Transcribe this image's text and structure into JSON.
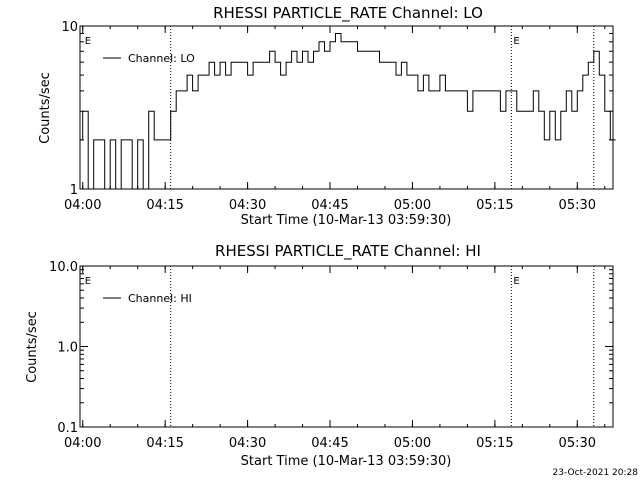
{
  "chart_data": [
    {
      "type": "line",
      "title": "RHESSI PARTICLE_RATE Channel: LO",
      "xlabel": "Start Time (10-Mar-13 03:59:30)",
      "ylabel": "Counts/sec",
      "y_scale": "log",
      "ylim": [
        1,
        10
      ],
      "xlim": [
        "03:59:30",
        "05:36:30"
      ],
      "x_ticks": [
        "04:00",
        "04:15",
        "04:30",
        "04:45",
        "05:00",
        "05:15",
        "05:30"
      ],
      "y_ticks": [
        "1",
        "10"
      ],
      "legend": "top-left",
      "series": [
        {
          "name": "Channel: LO",
          "x": [
            "03:59:30",
            "04:00",
            "04:01",
            "04:02",
            "04:03",
            "04:04",
            "04:05",
            "04:06",
            "04:07",
            "04:08",
            "04:09",
            "04:10",
            "04:11",
            "04:12",
            "04:13",
            "04:14",
            "04:15",
            "04:16",
            "04:17",
            "04:18",
            "04:19",
            "04:20",
            "04:21",
            "04:22",
            "04:23",
            "04:24",
            "04:25",
            "04:26",
            "04:27",
            "04:28",
            "04:29",
            "04:30",
            "04:31",
            "04:32",
            "04:33",
            "04:34",
            "04:35",
            "04:36",
            "04:37",
            "04:38",
            "04:39",
            "04:40",
            "04:41",
            "04:42",
            "04:43",
            "04:44",
            "04:45",
            "04:46",
            "04:47",
            "04:48",
            "04:49",
            "04:50",
            "04:51",
            "04:52",
            "04:53",
            "04:54",
            "04:55",
            "04:56",
            "04:57",
            "04:58",
            "04:59",
            "05:00",
            "05:01",
            "05:02",
            "05:03",
            "05:04",
            "05:05",
            "05:06",
            "05:07",
            "05:08",
            "05:09",
            "05:10",
            "05:11",
            "05:12",
            "05:13",
            "05:14",
            "05:15",
            "05:16",
            "05:17",
            "05:18",
            "05:19",
            "05:20",
            "05:21",
            "05:22",
            "05:23",
            "05:24",
            "05:25",
            "05:26",
            "05:27",
            "05:28",
            "05:29",
            "05:30",
            "05:31",
            "05:32",
            "05:33",
            "05:34",
            "05:35",
            "05:36"
          ],
          "y": [
            2,
            3,
            1,
            2,
            2,
            1,
            2,
            1,
            2,
            2,
            1,
            2,
            1,
            3,
            2,
            2,
            2,
            3,
            4,
            4,
            5,
            4,
            5,
            5,
            6,
            5,
            6,
            5,
            6,
            6,
            6,
            5,
            6,
            6,
            6,
            7,
            6,
            5,
            6,
            7,
            6,
            7,
            6,
            7,
            8,
            7,
            8,
            9,
            8,
            8,
            8,
            7,
            7,
            7,
            7,
            6,
            6,
            6,
            5,
            6,
            5,
            5,
            4,
            5,
            4,
            4,
            5,
            4,
            4,
            4,
            4,
            3,
            4,
            4,
            4,
            4,
            4,
            3,
            4,
            4,
            3,
            3,
            3,
            4,
            3,
            2,
            3,
            2,
            3,
            4,
            3,
            4,
            5,
            6,
            7,
            5,
            3,
            2
          ]
        }
      ],
      "annotations": [
        {
          "text": "E",
          "x": "04:00"
        },
        {
          "text": "E",
          "x": "05:18"
        }
      ],
      "vlines": [
        "04:16",
        "05:18",
        "05:33"
      ]
    },
    {
      "type": "line",
      "title": "RHESSI PARTICLE_RATE Channel: HI",
      "xlabel": "Start Time (10-Mar-13 03:59:30)",
      "ylabel": "Counts/sec",
      "y_scale": "log",
      "ylim": [
        0.1,
        10.0
      ],
      "xlim": [
        "03:59:30",
        "05:36:30"
      ],
      "x_ticks": [
        "04:00",
        "04:15",
        "04:30",
        "04:45",
        "05:00",
        "05:15",
        "05:30"
      ],
      "y_ticks": [
        "0.1",
        "1.0",
        "10.0"
      ],
      "legend": "top-left",
      "series": [
        {
          "name": "Channel: HI",
          "x": [],
          "y": []
        }
      ],
      "annotations": [
        {
          "text": "E",
          "x": "04:00"
        },
        {
          "text": "E",
          "x": "05:18"
        }
      ],
      "vlines": [
        "04:16",
        "05:18",
        "05:33"
      ]
    }
  ],
  "footer": {
    "date": "23-Oct-2021 20:28"
  }
}
